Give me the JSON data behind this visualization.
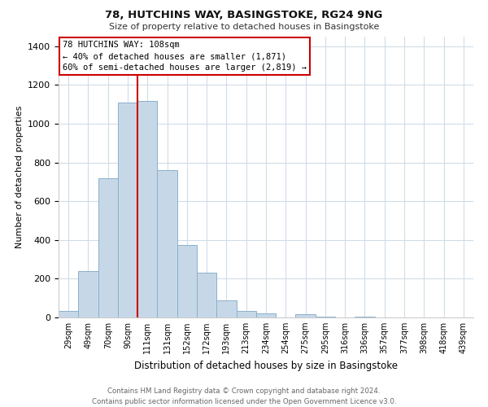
{
  "title": "78, HUTCHINS WAY, BASINGSTOKE, RG24 9NG",
  "subtitle": "Size of property relative to detached houses in Basingstoke",
  "xlabel": "Distribution of detached houses by size in Basingstoke",
  "ylabel": "Number of detached properties",
  "bar_labels": [
    "29sqm",
    "49sqm",
    "70sqm",
    "90sqm",
    "111sqm",
    "131sqm",
    "152sqm",
    "172sqm",
    "193sqm",
    "213sqm",
    "234sqm",
    "254sqm",
    "275sqm",
    "295sqm",
    "316sqm",
    "336sqm",
    "357sqm",
    "377sqm",
    "398sqm",
    "418sqm",
    "439sqm"
  ],
  "bar_values": [
    35,
    240,
    720,
    1110,
    1120,
    760,
    375,
    230,
    90,
    35,
    20,
    0,
    18,
    5,
    0,
    5,
    0,
    0,
    0,
    0,
    0
  ],
  "bar_color": "#c6d8e8",
  "bar_edge_color": "#8ab0cc",
  "vline_x": 3.5,
  "vline_color": "#cc0000",
  "ylim": [
    0,
    1450
  ],
  "yticks": [
    0,
    200,
    400,
    600,
    800,
    1000,
    1200,
    1400
  ],
  "annotation_title": "78 HUTCHINS WAY: 108sqm",
  "annotation_line1": "← 40% of detached houses are smaller (1,871)",
  "annotation_line2": "60% of semi-detached houses are larger (2,819) →",
  "annotation_box_color": "#ffffff",
  "annotation_box_edge": "#cc0000",
  "footer_line1": "Contains HM Land Registry data © Crown copyright and database right 2024.",
  "footer_line2": "Contains public sector information licensed under the Open Government Licence v3.0.",
  "background_color": "#ffffff",
  "grid_color": "#d0dce8"
}
